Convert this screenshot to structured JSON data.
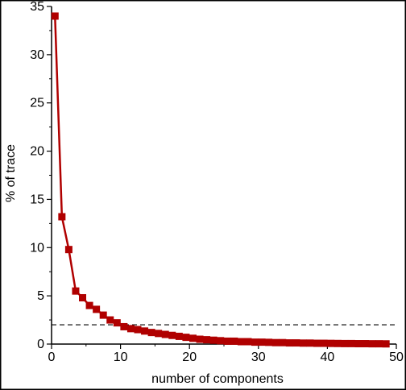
{
  "chart_data": {
    "type": "line",
    "title": "",
    "xlabel": "number of components",
    "ylabel": "% of trace",
    "xlim": [
      0,
      50
    ],
    "ylim": [
      0,
      35
    ],
    "x_ticks": [
      0,
      10,
      20,
      30,
      40,
      50
    ],
    "y_ticks": [
      0,
      5,
      10,
      15,
      20,
      25,
      30,
      35
    ],
    "grid": false,
    "legend": "none",
    "reference_line": {
      "y": 2,
      "style": "dashed",
      "color": "#000000"
    },
    "series": [
      {
        "color": "#b00000",
        "marker": "square",
        "x": [
          0.5,
          1.5,
          2.5,
          3.5,
          4.5,
          5.5,
          6.5,
          7.5,
          8.5,
          9.5,
          10.5,
          11.5,
          12.5,
          13.5,
          14.5,
          15.5,
          16.5,
          17.5,
          18.5,
          19.5,
          20.5,
          21.5,
          22.5,
          23.5,
          24.5,
          25.5,
          26.5,
          27.5,
          28.5,
          29.5,
          30.5,
          31.5,
          32.5,
          33.5,
          34.5,
          35.5,
          36.5,
          37.5,
          38.5,
          39.5,
          40.5,
          41.5,
          42.5,
          43.5,
          44.5,
          45.5,
          46.5,
          47.5,
          48.5
        ],
        "values": [
          34.0,
          13.2,
          9.8,
          5.5,
          4.8,
          4.0,
          3.6,
          3.0,
          2.5,
          2.2,
          1.8,
          1.6,
          1.5,
          1.35,
          1.2,
          1.1,
          1.0,
          0.9,
          0.8,
          0.7,
          0.6,
          0.5,
          0.45,
          0.4,
          0.35,
          0.3,
          0.3,
          0.25,
          0.25,
          0.2,
          0.2,
          0.18,
          0.15,
          0.15,
          0.12,
          0.12,
          0.1,
          0.1,
          0.08,
          0.08,
          0.07,
          0.06,
          0.05,
          0.05,
          0.04,
          0.04,
          0.03,
          0.03,
          0.02
        ]
      }
    ]
  }
}
